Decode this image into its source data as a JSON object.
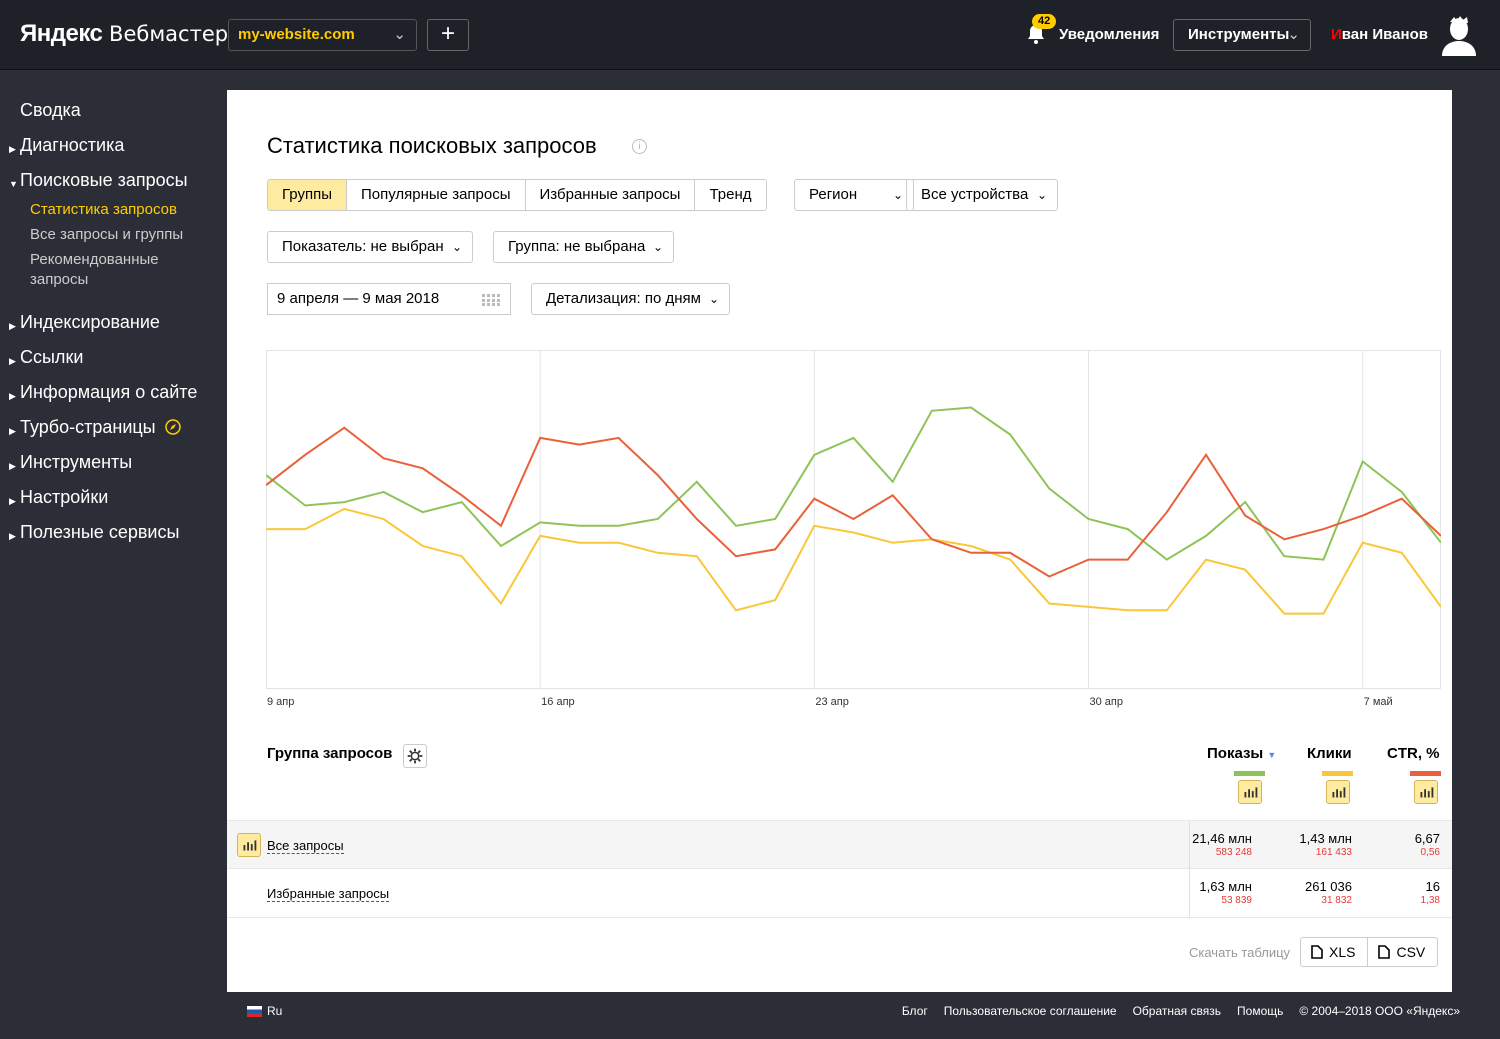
{
  "header": {
    "logo_brand": "Яндекс",
    "logo_product": "Вебмастер",
    "site": "my-website.com",
    "add_label": "+",
    "notifications_count": "42",
    "notifications_label": "Уведомления",
    "tools_label": "Инструменты",
    "user_first_letter": "И",
    "user_rest": "ван Иванов"
  },
  "sidebar": {
    "items": [
      {
        "label": "Сводка"
      },
      {
        "label": "Диагностика"
      },
      {
        "label": "Поисковые запросы"
      },
      {
        "label": "Индексирование"
      },
      {
        "label": "Ссылки"
      },
      {
        "label": "Информация о сайте"
      },
      {
        "label": "Турбо-страницы"
      },
      {
        "label": "Инструменты"
      },
      {
        "label": "Настройки"
      },
      {
        "label": "Полезные сервисы"
      }
    ],
    "subitems": [
      {
        "label": "Статистика запросов"
      },
      {
        "label": "Все запросы и группы"
      },
      {
        "label": "Рекомендованные запросы"
      }
    ]
  },
  "main": {
    "title": "Статистика поисковых запросов",
    "tabs": [
      {
        "label": "Группы"
      },
      {
        "label": "Популярные запросы"
      },
      {
        "label": "Избранные запросы"
      },
      {
        "label": "Тренд"
      }
    ],
    "region_label": "Регион",
    "devices_label": "Все устройства",
    "indicator_label": "Показатель: не выбран",
    "group_label": "Группа: не выбрана",
    "date_range": "9 апреля — 9 мая 2018",
    "detail_label": "Детализация: по дням"
  },
  "colors": {
    "impressions": "#8fc35a",
    "clicks": "#f9c739",
    "ctr": "#e9603a",
    "accent": "#ffcc00"
  },
  "chart_data": {
    "type": "line",
    "x_tick_labels": [
      "9 апр",
      "16 апр",
      "23 апр",
      "30 апр",
      "7 май"
    ],
    "x": [
      "9 апр",
      "10 апр",
      "11 апр",
      "12 апр",
      "13 апр",
      "14 апр",
      "15 апр",
      "16 апр",
      "17 апр",
      "18 апр",
      "19 апр",
      "20 апр",
      "21 апр",
      "22 апр",
      "23 апр",
      "24 апр",
      "25 апр",
      "26 апр",
      "27 апр",
      "28 апр",
      "29 апр",
      "30 апр",
      "1 май",
      "2 май",
      "3 май",
      "4 май",
      "5 май",
      "6 май",
      "7 май",
      "8 май",
      "9 май"
    ],
    "series": [
      {
        "name": "Показы",
        "color": "#8fc35a",
        "values": [
          63,
          54,
          55,
          58,
          52,
          55,
          42,
          49,
          48,
          48,
          50,
          61,
          48,
          50,
          69,
          74,
          61,
          82,
          83,
          75,
          59,
          50,
          47,
          38,
          45,
          55,
          39,
          38,
          67,
          58,
          43
        ]
      },
      {
        "name": "Клики",
        "color": "#f9c739",
        "values": [
          47,
          47,
          53,
          50,
          42,
          39,
          25,
          45,
          43,
          43,
          40,
          39,
          23,
          26,
          48,
          46,
          43,
          44,
          42,
          38,
          25,
          24,
          23,
          23,
          38,
          35,
          22,
          22,
          43,
          40,
          24
        ]
      },
      {
        "name": "CTR, %",
        "color": "#e9603a",
        "values": [
          60,
          69,
          77,
          68,
          65,
          57,
          48,
          74,
          72,
          74,
          63,
          50,
          39,
          41,
          56,
          50,
          57,
          44,
          40,
          40,
          33,
          38,
          38,
          52,
          69,
          51,
          44,
          47,
          51,
          56,
          45
        ]
      }
    ],
    "grid": true
  },
  "table": {
    "group_header": "Группа запросов",
    "col_impressions": "Показы",
    "col_clicks": "Клики",
    "col_ctr": "CTR, %",
    "rows": [
      {
        "label": "Все запросы",
        "impressions": "21,46 млн",
        "impressions_delta": "583 248",
        "clicks": "1,43 млн",
        "clicks_delta": "161 433",
        "ctr": "6,67",
        "ctr_delta": "0,56"
      },
      {
        "label": "Избранные запросы",
        "impressions": "1,63 млн",
        "impressions_delta": "53 839",
        "clicks": "261 036",
        "clicks_delta": "31 832",
        "ctr": "16",
        "ctr_delta": "1,38"
      }
    ],
    "download_label": "Скачать таблицу",
    "xls": "XLS",
    "csv": "CSV"
  },
  "footer": {
    "lang": "Ru",
    "links": [
      "Блог",
      "Пользовательское соглашение",
      "Обратная связь",
      "Помощь",
      "© 2004–2018  ООО «Яндекс»"
    ]
  }
}
